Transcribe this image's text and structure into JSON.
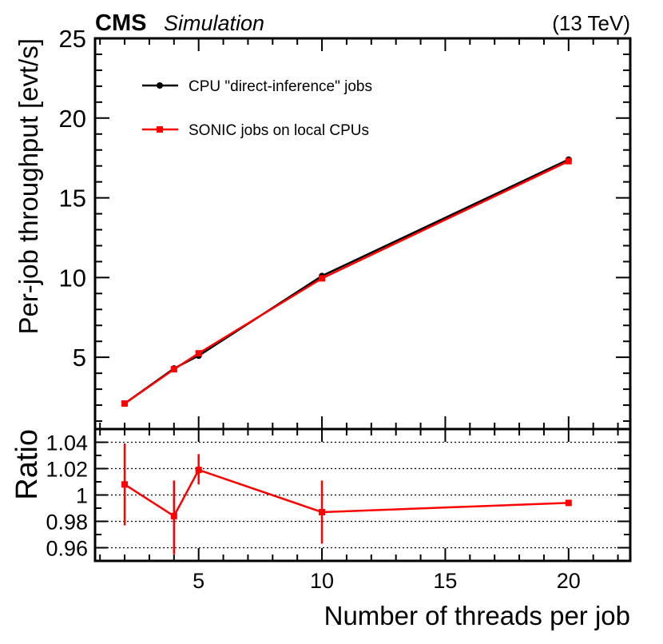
{
  "header": {
    "experiment": "CMS",
    "status": "Simulation",
    "energy": "(13 TeV)"
  },
  "colors": {
    "cpu": "#000000",
    "sonic": "#ff0000",
    "grid": "#000000"
  },
  "chart_data": [
    {
      "type": "line",
      "panel": "main",
      "ylabel": "Per-job throughput [evt/s]",
      "xlim": [
        0.8,
        22.5
      ],
      "ylim": [
        0.5,
        25
      ],
      "yticks": [
        5,
        10,
        15,
        20,
        25
      ],
      "legend_position": "top-left",
      "series": [
        {
          "name": "CPU \"direct-inference\" jobs",
          "color": "#000000",
          "marker": "circle",
          "x": [
            2,
            4,
            5,
            10,
            20
          ],
          "y": [
            2.1,
            4.3,
            5.1,
            10.1,
            17.4
          ]
        },
        {
          "name": "SONIC jobs on local CPUs",
          "color": "#ff0000",
          "marker": "square",
          "x": [
            2,
            4,
            5,
            10,
            20
          ],
          "y": [
            2.1,
            4.25,
            5.25,
            9.95,
            17.3
          ]
        }
      ]
    },
    {
      "type": "line",
      "panel": "ratio",
      "ylabel": "Ratio",
      "xlabel": "Number of threads per job",
      "xlim": [
        0.8,
        22.5
      ],
      "ylim": [
        0.95,
        1.05
      ],
      "yticks": [
        0.96,
        0.98,
        1,
        1.02,
        1.04
      ],
      "ytick_labels": [
        "0.96",
        "0.98",
        "1",
        "1.02",
        "1.04"
      ],
      "xticks": [
        5,
        10,
        15,
        20
      ],
      "xtick_labels": [
        "5",
        "10",
        "15",
        "20"
      ],
      "grid": true,
      "series": [
        {
          "name": "Ratio",
          "color": "#ff0000",
          "marker": "square",
          "x": [
            2,
            4,
            5,
            10,
            20
          ],
          "y": [
            1.008,
            0.984,
            1.019,
            0.987,
            0.994
          ],
          "yerr_low": [
            0.977,
            0.955,
            1.008,
            0.963,
            0.994
          ],
          "yerr_high": [
            1.039,
            1.011,
            1.031,
            1.011,
            0.994
          ]
        }
      ]
    }
  ]
}
